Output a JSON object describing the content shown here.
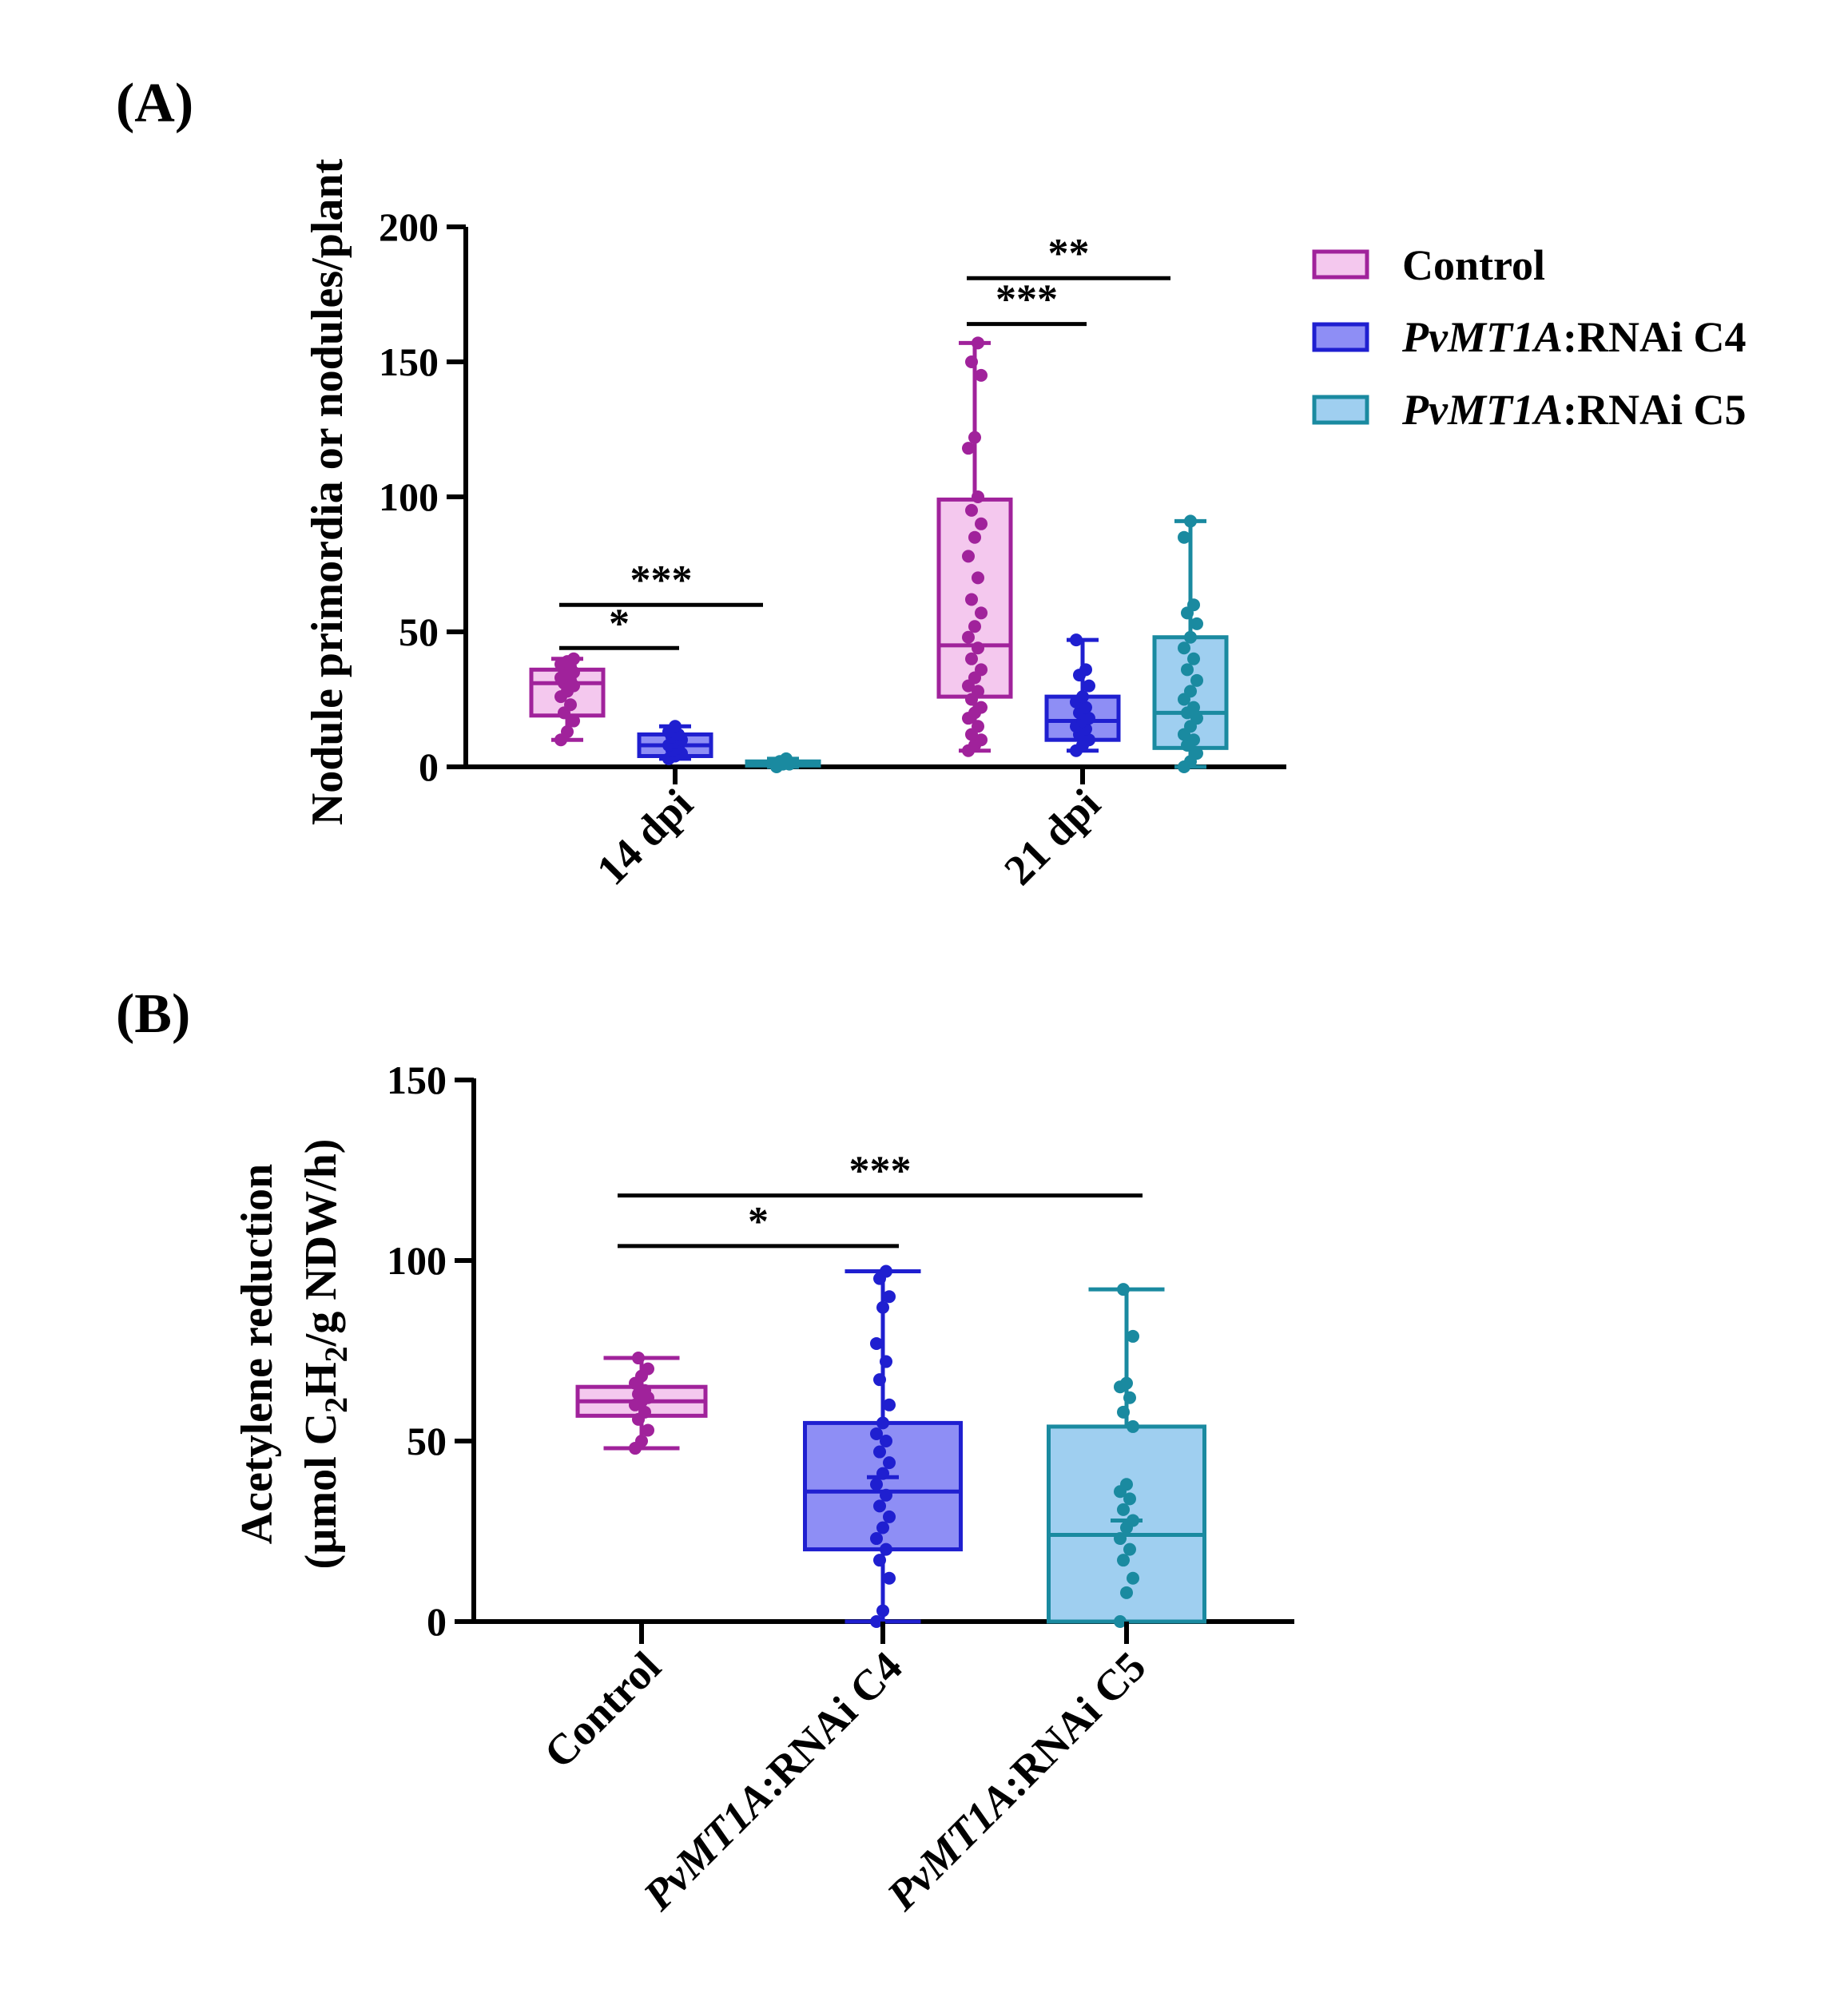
{
  "colors": {
    "control_edge": "#a0229b",
    "control_fill": "#f4c8ee",
    "c4_edge": "#1f1fd0",
    "c4_fill": "#8e8ef5",
    "c5_edge": "#1a8aa0",
    "c5_fill": "#9fcff0",
    "sig_line": "#000000"
  },
  "legend": {
    "items": [
      {
        "gene": "",
        "rest": "Control",
        "key": "control"
      },
      {
        "gene": "PvMT1A",
        "rest": ":RNAi C4",
        "key": "c4"
      },
      {
        "gene": "PvMT1A",
        "rest": ":RNAi C5",
        "key": "c5"
      }
    ]
  },
  "chart_data": [
    {
      "type": "box",
      "panel_label": "(A)",
      "ylabel": "Nodule primordia or nodules/plant",
      "ylim": [
        0,
        200
      ],
      "yticks": [
        0,
        50,
        100,
        150,
        200
      ],
      "groups": [
        "14 dpi",
        "21 dpi"
      ],
      "series": [
        {
          "name": "Control",
          "key": "control",
          "boxes": [
            {
              "group": "14 dpi",
              "min": 10,
              "q1": 19,
              "median": 31,
              "q3": 36,
              "max": 40,
              "points": [
                10,
                13,
                17,
                20,
                23,
                26,
                28,
                30,
                31,
                32,
                33,
                34,
                35,
                36,
                37,
                38,
                39,
                40
              ]
            },
            {
              "group": "21 dpi",
              "min": 6,
              "q1": 26,
              "median": 45,
              "q3": 99,
              "max": 157,
              "points": [
                6,
                8,
                10,
                12,
                15,
                18,
                20,
                22,
                25,
                28,
                30,
                33,
                36,
                40,
                44,
                48,
                52,
                57,
                62,
                70,
                78,
                85,
                90,
                95,
                100,
                118,
                122,
                145,
                150,
                157
              ]
            }
          ]
        },
        {
          "name": "PvMT1A:RNAi C4",
          "key": "c4",
          "boxes": [
            {
              "group": "14 dpi",
              "min": 3,
              "q1": 4,
              "median": 8,
              "q3": 12,
              "max": 15,
              "points": [
                3,
                4,
                5,
                6,
                7,
                8,
                9,
                10,
                11,
                12,
                13,
                15
              ]
            },
            {
              "group": "21 dpi",
              "min": 6,
              "q1": 10,
              "median": 17,
              "q3": 26,
              "max": 47,
              "points": [
                6,
                8,
                10,
                12,
                14,
                15,
                17,
                18,
                20,
                22,
                24,
                26,
                30,
                34,
                36,
                47
              ]
            }
          ]
        },
        {
          "name": "PvMT1A:RNAi C5",
          "key": "c5",
          "boxes": [
            {
              "group": "14 dpi",
              "min": 0,
              "q1": 0.5,
              "median": 1,
              "q3": 2,
              "max": 3,
              "points": [
                0,
                1,
                1,
                2,
                3
              ]
            },
            {
              "group": "21 dpi",
              "min": 0,
              "q1": 7,
              "median": 20,
              "q3": 48,
              "max": 91,
              "points": [
                0,
                2,
                5,
                8,
                10,
                12,
                15,
                18,
                20,
                22,
                25,
                28,
                32,
                36,
                40,
                44,
                48,
                53,
                57,
                60,
                85,
                91
              ]
            }
          ]
        }
      ],
      "significance": [
        {
          "group": "14 dpi",
          "from": "control",
          "to": "c4",
          "y": 44,
          "label": "*"
        },
        {
          "group": "14 dpi",
          "from": "control",
          "to": "c5",
          "y": 60,
          "label": "***"
        },
        {
          "group": "21 dpi",
          "from": "control",
          "to": "c4",
          "y": 164,
          "label": "***"
        },
        {
          "group": "21 dpi",
          "from": "control",
          "to": "c5",
          "y": 181,
          "label": "**"
        }
      ]
    },
    {
      "type": "box",
      "panel_label": "(B)",
      "ylabel_line1": "Acetylene reduction",
      "ylabel_line2": {
        "pre": "(µmol C",
        "sub1": "2",
        "mid": "H",
        "sub2": "2",
        "post": "/g NDW/h)"
      },
      "ylim": [
        0,
        150
      ],
      "yticks": [
        0,
        50,
        100,
        150
      ],
      "categories": [
        {
          "key": "control",
          "gene": "",
          "rest": "Control"
        },
        {
          "key": "c4",
          "gene": "PvMT1A",
          "rest": ":RNAi C4"
        },
        {
          "key": "c5",
          "gene": "PvMT1A",
          "rest": ":RNAi C5"
        }
      ],
      "boxes": [
        {
          "key": "control",
          "min": 48,
          "q1": 57,
          "median": 61,
          "q3": 65,
          "max": 73,
          "mean": 61,
          "points": [
            48,
            50,
            53,
            56,
            58,
            60,
            61,
            62,
            63,
            64,
            66,
            68,
            70,
            73
          ]
        },
        {
          "key": "c4",
          "min": 0,
          "q1": 20,
          "median": 36,
          "q3": 55,
          "max": 97,
          "mean": 40,
          "points": [
            0,
            3,
            12,
            17,
            20,
            23,
            26,
            29,
            32,
            35,
            38,
            41,
            44,
            47,
            50,
            52,
            55,
            60,
            67,
            72,
            77,
            87,
            90,
            95,
            97
          ]
        },
        {
          "key": "c5",
          "min": 0,
          "q1": 0,
          "median": 24,
          "q3": 54,
          "max": 92,
          "mean": 28,
          "points": [
            0,
            8,
            12,
            17,
            20,
            23,
            26,
            28,
            31,
            34,
            36,
            38,
            54,
            58,
            62,
            65,
            66,
            79,
            92
          ]
        }
      ],
      "significance": [
        {
          "from": "control",
          "to": "c4",
          "y": 104,
          "label": "*"
        },
        {
          "from": "control",
          "to": "c5",
          "y": 118,
          "label": "***"
        }
      ]
    }
  ]
}
